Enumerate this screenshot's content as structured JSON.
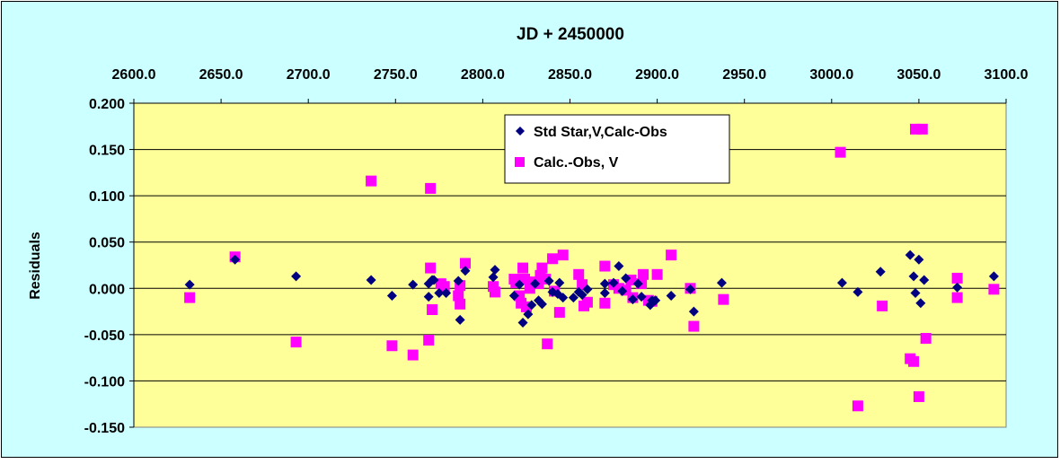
{
  "colors": {
    "chart_area": "#ccffff",
    "plot_area": "#ffff99",
    "gridline": "#000000",
    "series_std": "#000080",
    "series_calc": "#ff00ff"
  },
  "chart_data": {
    "type": "scatter",
    "title": "JD + 2450000",
    "xlabel": "",
    "ylabel": "Residuals",
    "x_axis_position": "top",
    "xlim": [
      2600,
      3100
    ],
    "x_ticks": [
      "2600.0",
      "2650.0",
      "2700.0",
      "2750.0",
      "2800.0",
      "2850.0",
      "2900.0",
      "2950.0",
      "3000.0",
      "3050.0",
      "3100.0"
    ],
    "ylim": [
      -0.15,
      0.2
    ],
    "y_ticks": [
      "0.200",
      "0.150",
      "0.100",
      "0.050",
      "0.000",
      "-0.050",
      "-0.100",
      "-0.150"
    ],
    "grid": "horizontal major gridlines",
    "legend_position": "top-center inside plot",
    "series": [
      {
        "name": "Std Star,V,Calc-Obs",
        "marker": "diamond",
        "color": "#000080",
        "points": [
          [
            2632,
            0.004
          ],
          [
            2658,
            0.031
          ],
          [
            2693,
            0.013
          ],
          [
            2736,
            0.009
          ],
          [
            2748,
            -0.008
          ],
          [
            2760,
            0.004
          ],
          [
            2769,
            -0.009
          ],
          [
            2769,
            0.005
          ],
          [
            2771,
            0.009
          ],
          [
            2772,
            0.009
          ],
          [
            2775,
            -0.005
          ],
          [
            2779,
            -0.005
          ],
          [
            2786,
            0.008
          ],
          [
            2787,
            -0.034
          ],
          [
            2790,
            0.019
          ],
          [
            2806,
            0.012
          ],
          [
            2807,
            0.02
          ],
          [
            2818,
            -0.008
          ],
          [
            2821,
            0.004
          ],
          [
            2823,
            -0.037
          ],
          [
            2826,
            -0.028
          ],
          [
            2828,
            -0.018
          ],
          [
            2830,
            0.005
          ],
          [
            2832,
            -0.013
          ],
          [
            2834,
            -0.017
          ],
          [
            2838,
            0.008
          ],
          [
            2840,
            -0.004
          ],
          [
            2843,
            -0.006
          ],
          [
            2844,
            0.006
          ],
          [
            2846,
            -0.01
          ],
          [
            2852,
            -0.01
          ],
          [
            2855,
            -0.004
          ],
          [
            2857,
            -0.007
          ],
          [
            2860,
            -0.001
          ],
          [
            2870,
            0.005
          ],
          [
            2870,
            -0.005
          ],
          [
            2875,
            0.006
          ],
          [
            2878,
            0.024
          ],
          [
            2880,
            -0.003
          ],
          [
            2882,
            0.011
          ],
          [
            2886,
            -0.012
          ],
          [
            2889,
            0.005
          ],
          [
            2891,
            -0.009
          ],
          [
            2896,
            -0.018
          ],
          [
            2897,
            -0.013
          ],
          [
            2899,
            -0.013
          ],
          [
            2908,
            -0.008
          ],
          [
            2919,
            -0.001
          ],
          [
            2921,
            -0.025
          ],
          [
            2937,
            0.006
          ],
          [
            3006,
            0.006
          ],
          [
            3015,
            -0.004
          ],
          [
            3028,
            0.018
          ],
          [
            3045,
            0.036
          ],
          [
            3047,
            0.013
          ],
          [
            3048,
            -0.005
          ],
          [
            3050,
            0.031
          ],
          [
            3051,
            -0.016
          ],
          [
            3053,
            0.009
          ],
          [
            3072,
            0.001
          ],
          [
            3093,
            0.013
          ]
        ]
      },
      {
        "name": "Calc.-Obs, V",
        "marker": "square",
        "color": "#ff00ff",
        "points": [
          [
            2632,
            -0.01
          ],
          [
            2658,
            0.034
          ],
          [
            2693,
            -0.058
          ],
          [
            2736,
            0.116
          ],
          [
            2748,
            -0.062
          ],
          [
            2760,
            -0.072
          ],
          [
            2769,
            -0.056
          ],
          [
            2770,
            0.108
          ],
          [
            2770,
            0.022
          ],
          [
            2771,
            -0.023
          ],
          [
            2776,
            0.005
          ],
          [
            2778,
            0.002
          ],
          [
            2786,
            -0.008
          ],
          [
            2787,
            -0.017
          ],
          [
            2787,
            0.003
          ],
          [
            2790,
            0.027
          ],
          [
            2806,
            0.002
          ],
          [
            2807,
            -0.004
          ],
          [
            2818,
            0.01
          ],
          [
            2819,
            0.006
          ],
          [
            2821,
            -0.008
          ],
          [
            2822,
            -0.016
          ],
          [
            2823,
            0.022
          ],
          [
            2824,
            0.01
          ],
          [
            2825,
            -0.02
          ],
          [
            2827,
            0.0
          ],
          [
            2829,
            0.007
          ],
          [
            2832,
            0.005
          ],
          [
            2833,
            0.014
          ],
          [
            2834,
            0.022
          ],
          [
            2836,
            0.01
          ],
          [
            2837,
            -0.06
          ],
          [
            2840,
            0.032
          ],
          [
            2841,
            -0.003
          ],
          [
            2844,
            -0.026
          ],
          [
            2846,
            0.036
          ],
          [
            2855,
            0.015
          ],
          [
            2857,
            0.004
          ],
          [
            2858,
            -0.019
          ],
          [
            2860,
            -0.015
          ],
          [
            2870,
            0.024
          ],
          [
            2870,
            -0.016
          ],
          [
            2875,
            0.004
          ],
          [
            2878,
            0.0
          ],
          [
            2882,
            -0.002
          ],
          [
            2885,
            0.009
          ],
          [
            2886,
            -0.01
          ],
          [
            2891,
            0.005
          ],
          [
            2892,
            0.015
          ],
          [
            2895,
            -0.013
          ],
          [
            2897,
            -0.014
          ],
          [
            2900,
            0.015
          ],
          [
            2908,
            0.036
          ],
          [
            2919,
            0.0
          ],
          [
            2921,
            -0.041
          ],
          [
            2938,
            -0.012
          ],
          [
            3005,
            0.147
          ],
          [
            3015,
            -0.127
          ],
          [
            3029,
            -0.019
          ],
          [
            3045,
            -0.076
          ],
          [
            3047,
            -0.079
          ],
          [
            3048,
            0.172
          ],
          [
            3050,
            -0.117
          ],
          [
            3052,
            0.172
          ],
          [
            3054,
            -0.054
          ],
          [
            3072,
            0.011
          ],
          [
            3072,
            -0.01
          ],
          [
            3093,
            -0.001
          ]
        ]
      }
    ]
  }
}
